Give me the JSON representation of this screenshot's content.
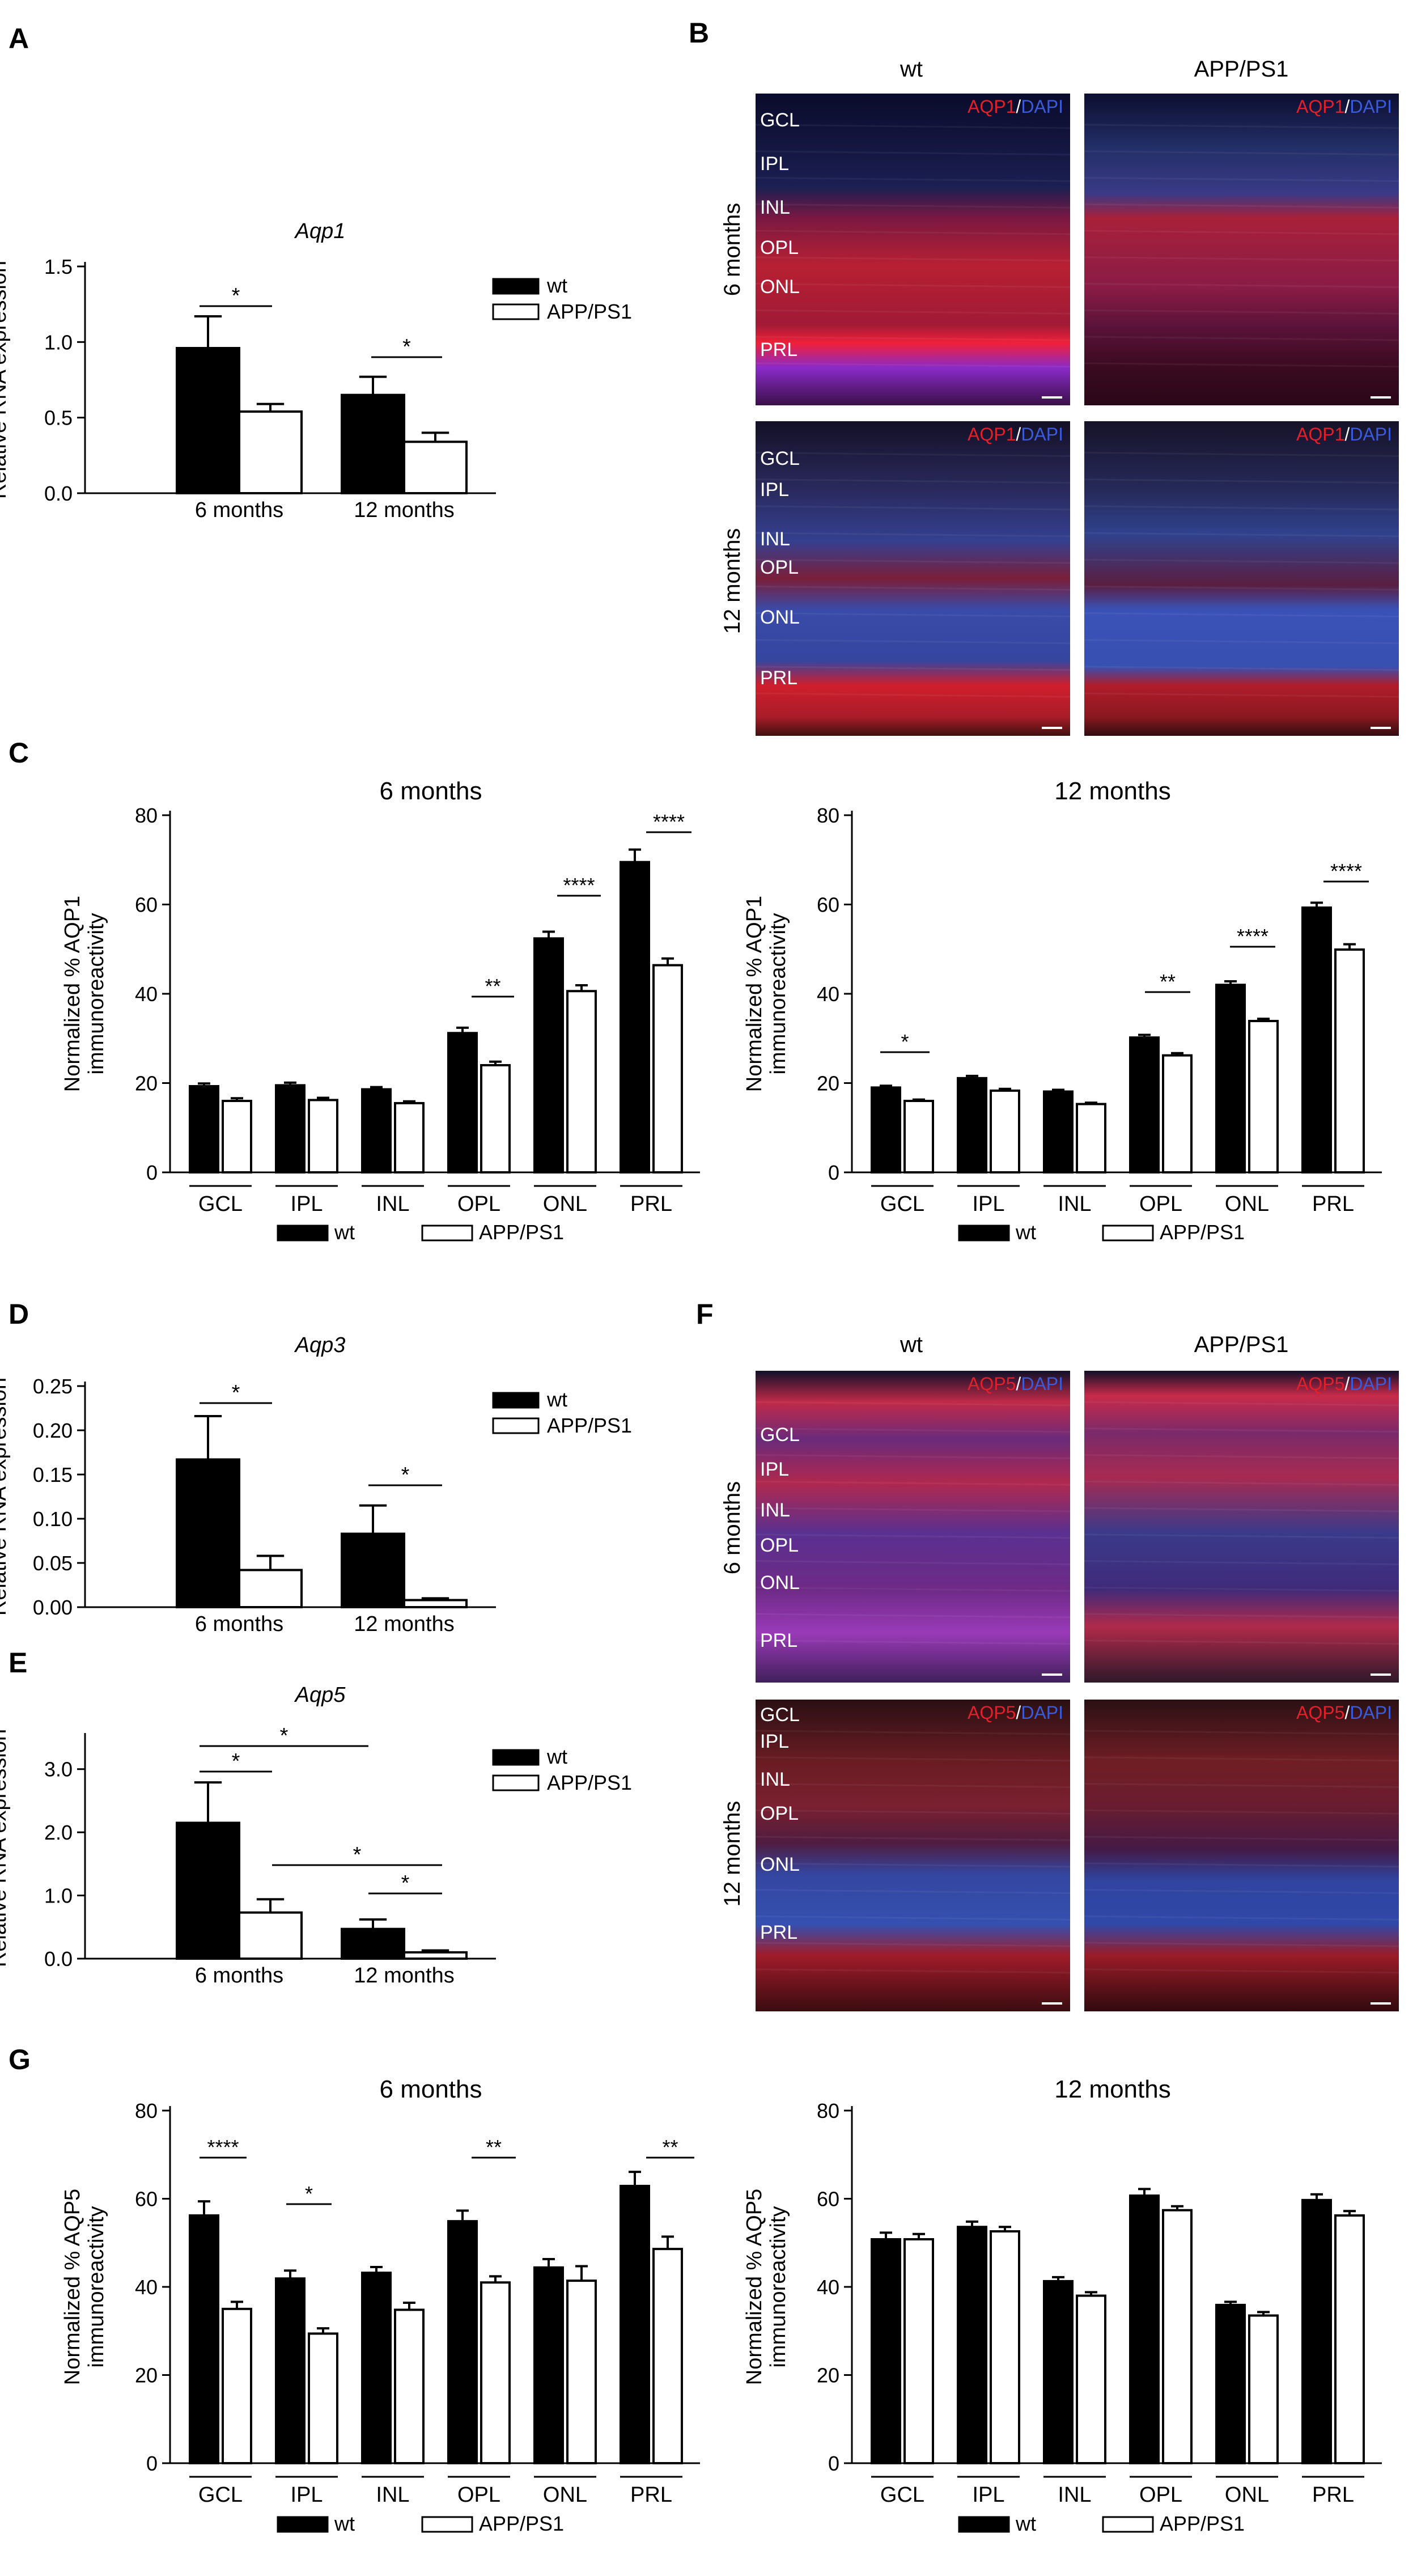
{
  "panels": {
    "A": "A",
    "B": "B",
    "C": "C",
    "D": "D",
    "E": "E",
    "F": "F",
    "G": "G"
  },
  "legend": {
    "wt": "wt",
    "app": "APP/PS1"
  },
  "colors": {
    "wt": "#000000",
    "app": "#ffffff",
    "stroke": "#000000"
  },
  "micrographs": {
    "columns": [
      "wt",
      "APP/PS1"
    ],
    "row_labels": [
      "6 months",
      "12 months"
    ],
    "layers": [
      "GCL",
      "IPL",
      "INL",
      "OPL",
      "ONL",
      "PRL"
    ],
    "aqp1_stain": {
      "red": "AQP1",
      "sep": "/",
      "blue": "DAPI"
    },
    "aqp5_stain": {
      "red": "AQP5",
      "sep": "/",
      "blue": "DAPI"
    }
  },
  "chart_data": [
    {
      "id": "A",
      "type": "bar",
      "title": "Aqp1",
      "ylabel": "Relative RNA expression",
      "ylim": [
        0,
        1.5
      ],
      "yticks": [
        "0.0",
        "0.5",
        "1.0",
        "1.5"
      ],
      "categories": [
        "6 months",
        "12 months"
      ],
      "series": [
        {
          "name": "wt",
          "values": [
            0.96,
            0.65
          ],
          "errors": [
            0.21,
            0.12
          ]
        },
        {
          "name": "APP/PS1",
          "values": [
            0.54,
            0.34
          ],
          "errors": [
            0.05,
            0.06
          ]
        }
      ],
      "significance": [
        "*",
        "*"
      ],
      "legend": "right"
    },
    {
      "id": "C1",
      "type": "bar",
      "title": "6 months",
      "ylabel": "Normalized % AQP1 immunoreactivity",
      "ylim": [
        0,
        80
      ],
      "yticks": [
        "0",
        "20",
        "40",
        "60",
        "80"
      ],
      "categories": [
        "GCL",
        "IPL",
        "INL",
        "OPL",
        "ONL",
        "PRL"
      ],
      "series": [
        {
          "name": "wt",
          "values": [
            19.3,
            19.5,
            18.6,
            31.2,
            52.4,
            69.5
          ],
          "errors": [
            0.6,
            0.6,
            0.5,
            1.2,
            1.5,
            2.8
          ]
        },
        {
          "name": "APP/PS1",
          "values": [
            16.0,
            16.2,
            15.5,
            24.0,
            40.6,
            46.4
          ],
          "errors": [
            0.6,
            0.5,
            0.4,
            0.8,
            1.3,
            1.5
          ]
        }
      ],
      "significance": [
        "",
        "",
        "",
        "**",
        "****",
        "****"
      ],
      "legend": "bottom"
    },
    {
      "id": "C2",
      "type": "bar",
      "title": "12 months",
      "ylabel": "Normalized % AQP1 immunoreactivity",
      "ylim": [
        0,
        80
      ],
      "yticks": [
        "0",
        "20",
        "40",
        "60",
        "80"
      ],
      "categories": [
        "GCL",
        "IPL",
        "INL",
        "OPL",
        "ONL",
        "PRL"
      ],
      "series": [
        {
          "name": "wt",
          "values": [
            19.0,
            21.1,
            18.1,
            30.2,
            42.0,
            59.3
          ],
          "errors": [
            0.4,
            0.5,
            0.4,
            0.6,
            0.8,
            1.1
          ]
        },
        {
          "name": "APP/PS1",
          "values": [
            16.0,
            18.3,
            15.3,
            26.2,
            33.9,
            49.9
          ],
          "errors": [
            0.3,
            0.4,
            0.3,
            0.5,
            0.5,
            1.2
          ]
        }
      ],
      "significance": [
        "*",
        "",
        "",
        "**",
        "****",
        "****"
      ],
      "legend": "bottom"
    },
    {
      "id": "D",
      "type": "bar",
      "title": "Aqp3",
      "ylabel": "Relative RNA expression",
      "ylim": [
        0,
        0.25
      ],
      "yticks": [
        "0.00",
        "0.05",
        "0.10",
        "0.15",
        "0.20",
        "0.25"
      ],
      "categories": [
        "6 months",
        "12 months"
      ],
      "series": [
        {
          "name": "wt",
          "values": [
            0.167,
            0.083
          ],
          "errors": [
            0.049,
            0.032
          ]
        },
        {
          "name": "APP/PS1",
          "values": [
            0.042,
            0.008
          ],
          "errors": [
            0.016,
            0.002
          ]
        }
      ],
      "significance": [
        "*",
        "*"
      ],
      "legend": "right"
    },
    {
      "id": "E",
      "type": "bar",
      "title": "Aqp5",
      "ylabel": "Relative RNA expression",
      "ylim": [
        0,
        3.5
      ],
      "yticks": [
        "0.0",
        "1.0",
        "2.0",
        "3.0"
      ],
      "categories": [
        "6 months",
        "12 months"
      ],
      "series": [
        {
          "name": "wt",
          "values": [
            2.15,
            0.47
          ],
          "errors": [
            0.64,
            0.15
          ]
        },
        {
          "name": "APP/PS1",
          "values": [
            0.73,
            0.1
          ],
          "errors": [
            0.21,
            0.03
          ]
        }
      ],
      "significance": [
        "*",
        "*"
      ],
      "extra_significance": [
        "*",
        "*"
      ],
      "legend": "right"
    },
    {
      "id": "G1",
      "type": "bar",
      "title": "6 months",
      "ylabel": "Normalized % AQP5 immunoreactivity",
      "ylim": [
        0,
        80
      ],
      "yticks": [
        "0",
        "20",
        "40",
        "60",
        "80"
      ],
      "categories": [
        "GCL",
        "IPL",
        "INL",
        "OPL",
        "ONL",
        "PRL"
      ],
      "series": [
        {
          "name": "wt",
          "values": [
            56.2,
            41.9,
            43.2,
            54.9,
            44.4,
            62.9
          ],
          "errors": [
            3.2,
            1.8,
            1.3,
            2.4,
            1.9,
            3.2
          ]
        },
        {
          "name": "APP/PS1",
          "values": [
            35.0,
            29.4,
            34.8,
            41.0,
            41.4,
            48.6
          ],
          "errors": [
            1.6,
            1.2,
            1.6,
            1.4,
            3.3,
            2.8
          ]
        }
      ],
      "significance": [
        "****",
        "*",
        "",
        "**",
        "",
        "**"
      ],
      "legend": "bottom"
    },
    {
      "id": "G2",
      "type": "bar",
      "title": "12 months",
      "ylabel": "Normalized % AQP5 immunoreactivity",
      "ylim": [
        0,
        80
      ],
      "yticks": [
        "0",
        "20",
        "40",
        "60",
        "80"
      ],
      "categories": [
        "GCL",
        "IPL",
        "INL",
        "OPL",
        "ONL",
        "PRL"
      ],
      "series": [
        {
          "name": "wt",
          "values": [
            50.8,
            53.6,
            41.3,
            60.7,
            35.9,
            59.7
          ],
          "errors": [
            1.5,
            1.2,
            0.9,
            1.5,
            0.7,
            1.3
          ]
        },
        {
          "name": "APP/PS1",
          "values": [
            50.8,
            52.6,
            38.0,
            57.4,
            33.5,
            56.2
          ],
          "errors": [
            1.2,
            1.0,
            0.8,
            0.9,
            0.8,
            1.0
          ]
        }
      ],
      "significance": [
        "",
        "",
        "",
        "",
        "",
        ""
      ],
      "legend": "bottom"
    }
  ]
}
